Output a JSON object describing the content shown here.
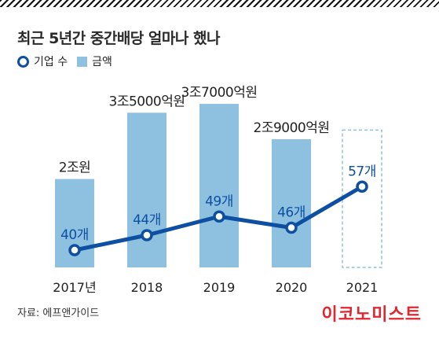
{
  "title": "최근 5년간 중간배당 얼마나 했나",
  "legend": {
    "count_label": "기업 수",
    "amount_label": "금액"
  },
  "source": "자료: 에프앤가이드",
  "brand": "이코노미스트",
  "colors": {
    "bar": "#8dc1df",
    "line": "#0d4fa2",
    "label": "#222222",
    "brand": "#e0262e"
  },
  "chart_data": {
    "type": "bar+line",
    "categories": [
      "2017년",
      "2018",
      "2019",
      "2020",
      "2021"
    ],
    "series": [
      {
        "name": "금액",
        "type": "bar",
        "unit": "억원",
        "values": [
          20000,
          35000,
          37000,
          29000,
          null
        ],
        "labels": [
          "2조원",
          "3조5000억원",
          "3조7000억원",
          "2조9000억원",
          ""
        ],
        "placeholder_index": 4
      },
      {
        "name": "기업 수",
        "type": "line",
        "values": [
          40,
          44,
          49,
          46,
          57
        ],
        "labels": [
          "40개",
          "44개",
          "49개",
          "46개",
          "57개"
        ]
      }
    ],
    "grid": false,
    "legend_position": "top-left"
  }
}
